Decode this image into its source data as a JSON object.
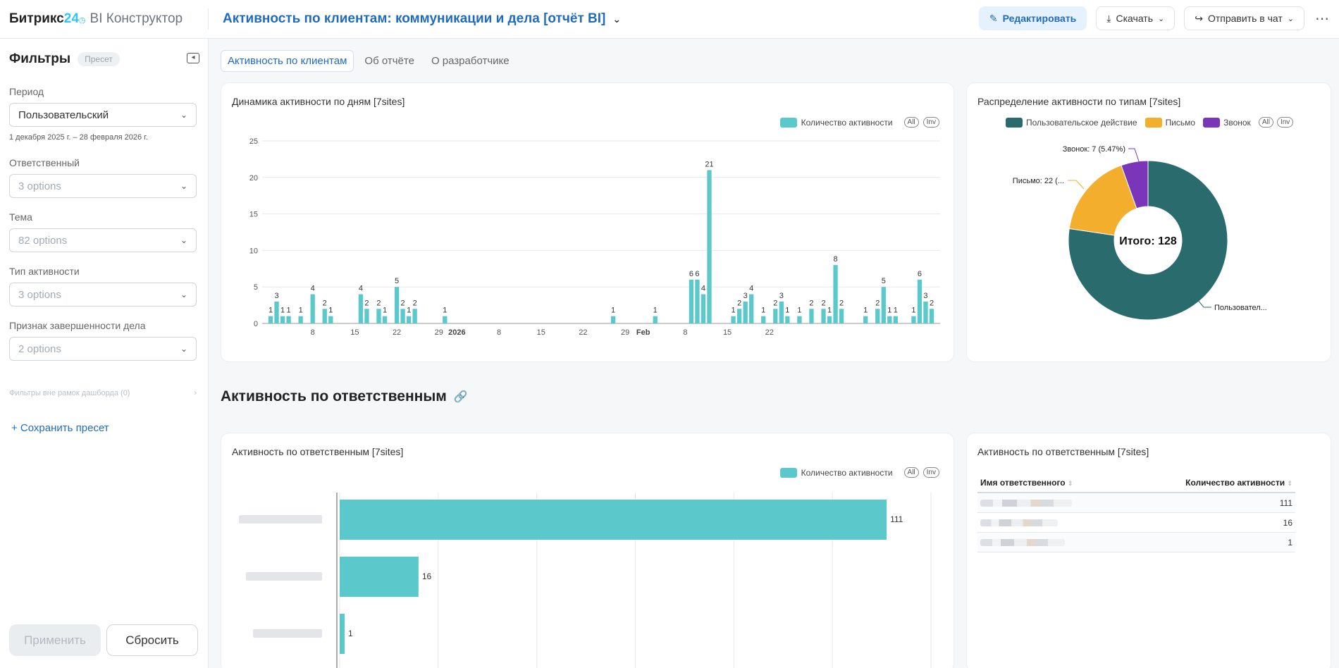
{
  "header": {
    "logo_brand": "Битрикс",
    "logo_num": "24",
    "logo_product": "BI Конструктор",
    "title": "Активность по клиентам: коммуникации и дела [отчёт BI]",
    "edit_label": "Редактировать",
    "download_label": "Скачать",
    "send_label": "Отправить в чат"
  },
  "sidebar": {
    "title": "Фильтры",
    "preset_badge": "Пресет",
    "period_label": "Период",
    "period_value": "Пользовательский",
    "period_range": "1 декабря 2025 г. – 28 февраля 2026 г.",
    "responsible_label": "Ответственный",
    "responsible_value": "3 options",
    "topic_label": "Тема",
    "topic_value": "82 options",
    "activity_type_label": "Тип активности",
    "activity_type_value": "3 options",
    "completion_label": "Признак завершенности дела",
    "completion_value": "2 options",
    "outside_filters": "Фильтры вне рамок дашборда (0)",
    "save_preset": "+ Сохранить пресет",
    "apply": "Применить",
    "reset": "Сбросить"
  },
  "tabs": [
    {
      "label": "Активность по клиентам"
    },
    {
      "label": "Об отчёте"
    },
    {
      "label": "О разработчике"
    }
  ],
  "daily_chart": {
    "title": "Динамика активности по дням [7sites]",
    "legend": "Количество активности",
    "all": "All",
    "inv": "Inv"
  },
  "pie_chart": {
    "title": "Распределение активности по типам [7sites]",
    "legend_user": "Пользовательское действие",
    "legend_letter": "Письмо",
    "legend_call": "Звонок",
    "all": "All",
    "inv": "Inv",
    "center": "Итого: 128",
    "label_call": "Звонок: 7 (5.47%)",
    "label_letter": "Письмо: 22 (...",
    "label_user": "Пользовател..."
  },
  "section": {
    "title": "Активность по ответственным"
  },
  "resp_chart": {
    "title": "Активность по ответственным [7sites]",
    "legend": "Количество активности",
    "all": "All",
    "inv": "Inv"
  },
  "resp_table": {
    "title": "Активность по ответственным [7sites]",
    "col_name": "Имя ответственного",
    "col_count": "Количество активности",
    "rows": [
      {
        "count": "111"
      },
      {
        "count": "16"
      },
      {
        "count": "1"
      }
    ]
  },
  "colors": {
    "bar": "#5bc9cc",
    "user": "#2a6b6d",
    "letter": "#f2ae2c",
    "call": "#7b35b8",
    "accent": "#1f6bc1"
  },
  "chart_data": [
    {
      "type": "bar",
      "x_unit": "day",
      "x_start": "2025-12-01",
      "x_tick_labels": [
        "8",
        "15",
        "22",
        "29",
        "2026",
        "8",
        "15",
        "22",
        "29",
        "Feb",
        "8",
        "15",
        "22"
      ],
      "y_ticks": [
        0,
        5,
        10,
        15,
        20,
        25
      ],
      "ylim": [
        0,
        25
      ],
      "series": [
        {
          "name": "Количество активности",
          "values": [
            1,
            3,
            1,
            1,
            0,
            1,
            0,
            4,
            0,
            2,
            1,
            0,
            0,
            0,
            0,
            4,
            2,
            0,
            2,
            1,
            0,
            5,
            2,
            1,
            2,
            0,
            0,
            0,
            0,
            1,
            0,
            0,
            0,
            0,
            0,
            0,
            0,
            0,
            0,
            0,
            0,
            0,
            0,
            0,
            0,
            0,
            0,
            0,
            0,
            0,
            0,
            0,
            0,
            0,
            0,
            0,
            0,
            1,
            0,
            0,
            0,
            0,
            0,
            0,
            1,
            0,
            0,
            0,
            0,
            0,
            6,
            6,
            4,
            21,
            0,
            0,
            0,
            1,
            2,
            3,
            4,
            0,
            1,
            0,
            2,
            3,
            1,
            0,
            1,
            0,
            2,
            0,
            2,
            1,
            8,
            2,
            0,
            0,
            0,
            1,
            0,
            2,
            5,
            1,
            1,
            0,
            0,
            1,
            6,
            3,
            2
          ]
        }
      ]
    },
    {
      "type": "pie",
      "categories": [
        "Пользовательское действие",
        "Письмо",
        "Звонок"
      ],
      "values": [
        99,
        22,
        7
      ],
      "total": 128
    },
    {
      "type": "bar",
      "orientation": "horizontal",
      "series": [
        {
          "name": "Количество активности",
          "values": [
            111,
            16,
            1
          ]
        }
      ],
      "xlim": [
        0,
        120
      ]
    }
  ]
}
